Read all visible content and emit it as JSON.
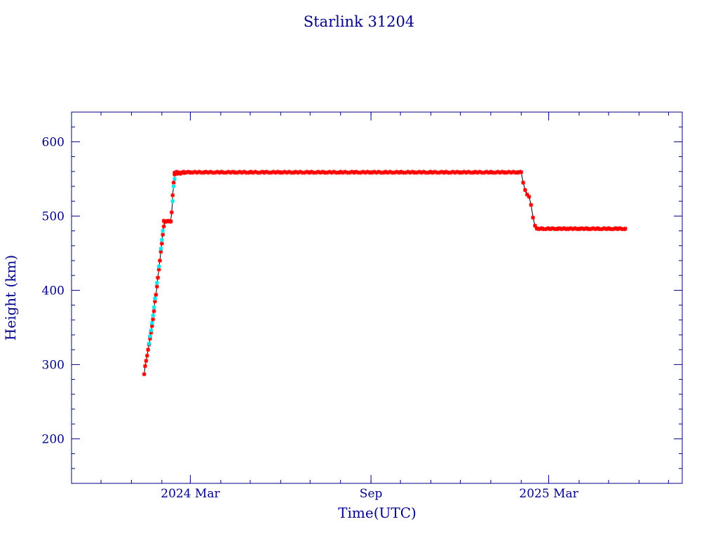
{
  "chart_data": {
    "type": "scatter",
    "title": "Starlink 31204",
    "xlabel": "Time(UTC)",
    "ylabel": "Height (km)",
    "ylim": [
      140,
      640
    ],
    "xlim": [
      "2023-11-01",
      "2025-07-15"
    ],
    "grid": false,
    "colors": {
      "axis": "#00008b",
      "series_red": "#ff0000",
      "series_cyan": "#00e5ee",
      "line": "#000000"
    },
    "x_tick_labels": [
      {
        "date": "2024-03-01",
        "label": "2024 Mar"
      },
      {
        "date": "2024-09-01",
        "label": "Sep"
      },
      {
        "date": "2025-03-01",
        "label": "2025 Mar"
      }
    ],
    "y_tick_labels": [
      {
        "value": 200,
        "label": "200"
      },
      {
        "value": 300,
        "label": "300"
      },
      {
        "value": 400,
        "label": "400"
      },
      {
        "value": 500,
        "label": "500"
      },
      {
        "value": 600,
        "label": "600"
      }
    ],
    "series": [
      {
        "color": "red",
        "points": [
          [
            "2024-01-14",
            287
          ],
          [
            "2024-01-15",
            298
          ],
          [
            "2024-01-16",
            305
          ],
          [
            "2024-01-17",
            312
          ],
          [
            "2024-01-18",
            320
          ],
          [
            "2024-01-19",
            327
          ],
          [
            "2024-01-20",
            335
          ],
          [
            "2024-01-21",
            343
          ],
          [
            "2024-01-22",
            352
          ],
          [
            "2024-01-23",
            361
          ],
          [
            "2024-01-24",
            372
          ],
          [
            "2024-01-25",
            385
          ],
          [
            "2024-01-26",
            394
          ],
          [
            "2024-01-27",
            405
          ],
          [
            "2024-01-28",
            417
          ],
          [
            "2024-01-29",
            428
          ],
          [
            "2024-01-30",
            440
          ],
          [
            "2024-01-31",
            452
          ],
          [
            "2024-02-01",
            463
          ],
          [
            "2024-02-02",
            475
          ],
          [
            "2024-02-03",
            486
          ],
          [
            "2024-02-04",
            492
          ],
          [
            "2024-02-06",
            493
          ],
          [
            "2024-02-08",
            493
          ],
          [
            "2024-02-10",
            493
          ],
          [
            "2024-02-11",
            505
          ],
          [
            "2024-02-12",
            528
          ],
          [
            "2024-02-13",
            545
          ],
          [
            "2024-02-14",
            556
          ],
          [
            "2024-02-17",
            557
          ],
          [
            "2024-02-20",
            557
          ],
          [
            "2024-02-24",
            558
          ],
          [
            "2024-03-01",
            559
          ],
          [
            "2024-03-15",
            559
          ],
          [
            "2024-04-01",
            559
          ],
          [
            "2024-04-15",
            559
          ],
          [
            "2024-05-01",
            559
          ],
          [
            "2024-05-15",
            559
          ],
          [
            "2024-06-01",
            559
          ],
          [
            "2024-06-15",
            559
          ],
          [
            "2024-07-01",
            559
          ],
          [
            "2024-07-15",
            559
          ],
          [
            "2024-08-01",
            559
          ],
          [
            "2024-08-15",
            559
          ],
          [
            "2024-09-01",
            559
          ],
          [
            "2024-09-15",
            559
          ],
          [
            "2024-10-01",
            559
          ],
          [
            "2024-10-15",
            559
          ],
          [
            "2024-11-01",
            559
          ],
          [
            "2024-11-15",
            559
          ],
          [
            "2024-12-01",
            559
          ],
          [
            "2024-12-15",
            559
          ],
          [
            "2025-01-01",
            559
          ],
          [
            "2025-01-15",
            559
          ],
          [
            "2025-01-28",
            559
          ],
          [
            "2025-02-01",
            559
          ],
          [
            "2025-02-03",
            545
          ],
          [
            "2025-02-05",
            535
          ],
          [
            "2025-02-07",
            529
          ],
          [
            "2025-02-09",
            526
          ],
          [
            "2025-02-11",
            515
          ],
          [
            "2025-02-13",
            498
          ],
          [
            "2025-02-15",
            487
          ],
          [
            "2025-02-17",
            483
          ],
          [
            "2025-02-22",
            483
          ],
          [
            "2025-03-01",
            483
          ],
          [
            "2025-03-10",
            483
          ],
          [
            "2025-03-20",
            483
          ],
          [
            "2025-04-01",
            483
          ],
          [
            "2025-04-10",
            483
          ],
          [
            "2025-04-20",
            483
          ],
          [
            "2025-05-01",
            483
          ],
          [
            "2025-05-10",
            483
          ],
          [
            "2025-05-18",
            483
          ]
        ]
      },
      {
        "color": "cyan",
        "points": [
          [
            "2024-01-19",
            328
          ],
          [
            "2024-01-20",
            338
          ],
          [
            "2024-01-21",
            346
          ],
          [
            "2024-01-22",
            356
          ],
          [
            "2024-01-23",
            366
          ],
          [
            "2024-01-24",
            377
          ],
          [
            "2024-01-25",
            389
          ],
          [
            "2024-01-27",
            410
          ],
          [
            "2024-01-29",
            432
          ],
          [
            "2024-01-31",
            456
          ],
          [
            "2024-02-01",
            468
          ],
          [
            "2024-02-02",
            480
          ],
          [
            "2024-02-12",
            520
          ],
          [
            "2024-02-13",
            540
          ],
          [
            "2024-02-14",
            550
          ]
        ]
      }
    ]
  }
}
